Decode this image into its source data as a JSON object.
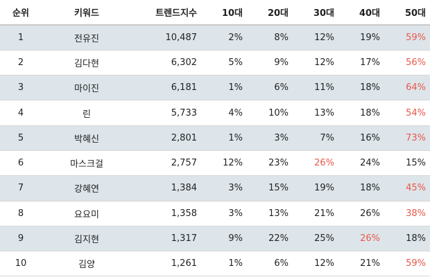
{
  "headers": {
    "rank": "순위",
    "keyword": "키워드",
    "trend": "트렌드지수",
    "age10": "10대",
    "age20": "20대",
    "age30": "30대",
    "age40": "40대",
    "age50": "50대"
  },
  "highlight_color": "#e8584a",
  "row_shade_color": "#dde5ea",
  "rows": [
    {
      "rank": "1",
      "keyword": "전유진",
      "trend": "10,487",
      "age10": "2%",
      "age20": "8%",
      "age30": "12%",
      "age40": "19%",
      "age50": "59%",
      "highlight": "age50"
    },
    {
      "rank": "2",
      "keyword": "김다현",
      "trend": "6,302",
      "age10": "5%",
      "age20": "9%",
      "age30": "12%",
      "age40": "17%",
      "age50": "56%",
      "highlight": "age50"
    },
    {
      "rank": "3",
      "keyword": "마이진",
      "trend": "6,181",
      "age10": "1%",
      "age20": "6%",
      "age30": "11%",
      "age40": "18%",
      "age50": "64%",
      "highlight": "age50"
    },
    {
      "rank": "4",
      "keyword": "린",
      "trend": "5,733",
      "age10": "4%",
      "age20": "10%",
      "age30": "13%",
      "age40": "18%",
      "age50": "54%",
      "highlight": "age50"
    },
    {
      "rank": "5",
      "keyword": "박혜신",
      "trend": "2,801",
      "age10": "1%",
      "age20": "3%",
      "age30": "7%",
      "age40": "16%",
      "age50": "73%",
      "highlight": "age50"
    },
    {
      "rank": "6",
      "keyword": "마스크걸",
      "trend": "2,757",
      "age10": "12%",
      "age20": "23%",
      "age30": "26%",
      "age40": "24%",
      "age50": "15%",
      "highlight": "age30"
    },
    {
      "rank": "7",
      "keyword": "강혜연",
      "trend": "1,384",
      "age10": "3%",
      "age20": "15%",
      "age30": "19%",
      "age40": "18%",
      "age50": "45%",
      "highlight": "age50"
    },
    {
      "rank": "8",
      "keyword": "요요미",
      "trend": "1,358",
      "age10": "3%",
      "age20": "13%",
      "age30": "21%",
      "age40": "26%",
      "age50": "38%",
      "highlight": "age50"
    },
    {
      "rank": "9",
      "keyword": "김지현",
      "trend": "1,317",
      "age10": "9%",
      "age20": "22%",
      "age30": "25%",
      "age40": "26%",
      "age50": "18%",
      "highlight": "age40"
    },
    {
      "rank": "10",
      "keyword": "김양",
      "trend": "1,261",
      "age10": "1%",
      "age20": "6%",
      "age30": "12%",
      "age40": "21%",
      "age50": "59%",
      "highlight": "age50"
    }
  ]
}
